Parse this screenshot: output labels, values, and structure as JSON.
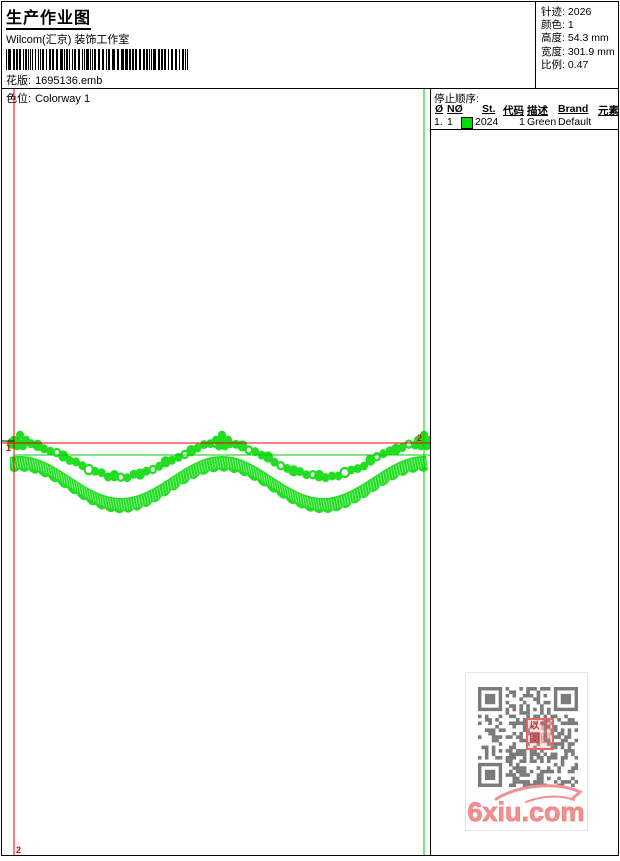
{
  "header": {
    "title": "生产作业图",
    "studio": "Wilcom(汇京) 装饰工作室",
    "design_label": "花版:",
    "design_value": "1695136.emb",
    "colorway_label": "色位:",
    "colorway_value": "Colorway 1"
  },
  "summary": {
    "rows": [
      {
        "label": "针迹:",
        "value": "2026"
      },
      {
        "label": "颜色:",
        "value": "1"
      },
      {
        "label": "高度:",
        "value": "54.3 mm"
      },
      {
        "label": "宽度:",
        "value": "301.9 mm"
      },
      {
        "label": "比例:",
        "value": "0.47"
      }
    ]
  },
  "stop_sequence": {
    "title": "停止顺序:",
    "columns": [
      "Ø",
      "NØ",
      "St.",
      "代码",
      "描述",
      "Brand",
      "元素"
    ],
    "rows": [
      {
        "seq": "1.",
        "no": "1",
        "swatch_color": "#00dd00",
        "st": "2024",
        "code": "1",
        "desc": "Green",
        "brand": "Default",
        "element": ""
      }
    ]
  },
  "canvas": {
    "start_marker": "1",
    "end_marker": "2",
    "lower_marker": "2",
    "thread_color": "#22dd22",
    "guide_red": "#ee0000",
    "guide_green": "#00cc00",
    "marker_red": "#e60000"
  },
  "watermark": {
    "site": "6xiu.com",
    "stamp_primary": "以图",
    "stamp_secondary": "搜图",
    "pink": "#f29090",
    "qr_gray": "#7b7b7b"
  }
}
